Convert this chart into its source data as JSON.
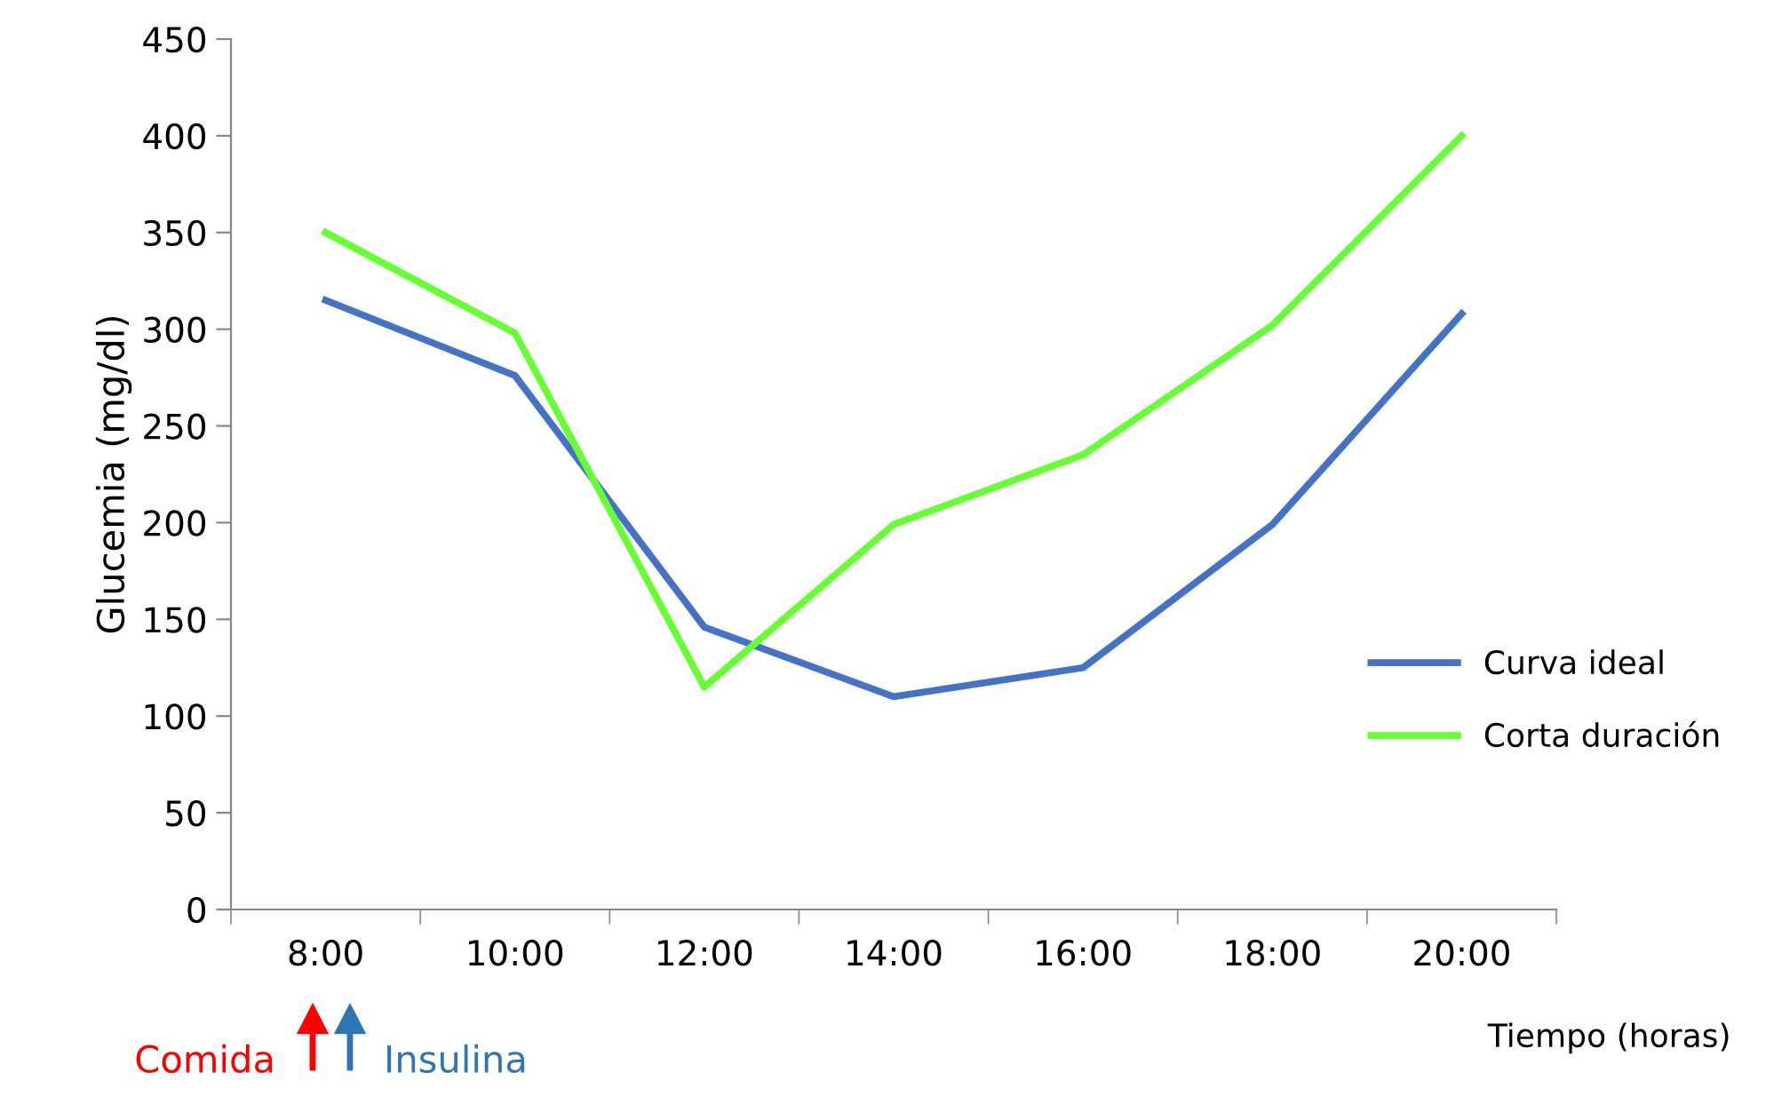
{
  "chart_data": {
    "type": "line",
    "categories": [
      "8:00",
      "10:00",
      "12:00",
      "14:00",
      "16:00",
      "18:00",
      "20:00"
    ],
    "series": [
      {
        "name": "Curva ideal",
        "color": "#4472c4",
        "values": [
          315,
          276,
          146,
          110,
          125,
          199,
          308
        ]
      },
      {
        "name": "Corta duración",
        "color": "#66ff33",
        "values": [
          350,
          298,
          115,
          199,
          235,
          302,
          400
        ]
      }
    ],
    "xlabel": "Tiempo (horas)",
    "ylabel": "Glucemia (mg/dl)",
    "ylim": [
      0,
      450
    ],
    "yticks": [
      0,
      50,
      100,
      150,
      200,
      250,
      300,
      350,
      400,
      450
    ],
    "annotations": [
      "Comida",
      "Insulina"
    ],
    "legend": "right",
    "grid": false,
    "marker": "none",
    "line_style": "solid"
  }
}
